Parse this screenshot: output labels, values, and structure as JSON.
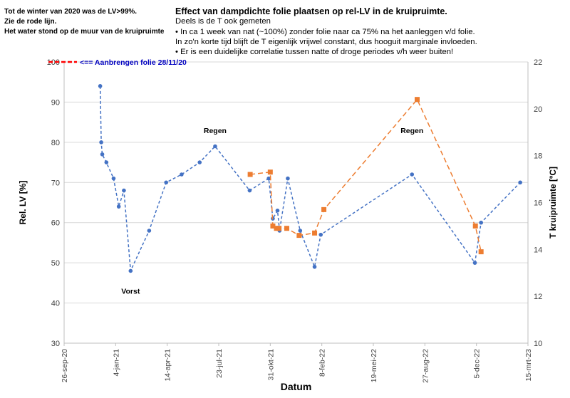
{
  "notes": {
    "line1": "Tot de winter  van 2020 was de LV>99%.",
    "line2": "Zie de rode lijn.",
    "line3": "Het water stond op de muur van de kruipruimte"
  },
  "header": {
    "title": "Effect van dampdichte  folie plaatsen op rel-LV in de kruipruimte.",
    "sub1": "Deels is de T ook gemeten",
    "sub2": "• In ca 1 week van nat (~100%) zonder folie naar ca 75% na het aanleggen v/d folie.",
    "sub3": "   In zo'n korte tijd blijft de T eigenlijk vrijwel constant, dus hooguit marginale invloeden.",
    "sub4": "• Er is een duidelijke correlatie tussen natte of droge periodes v/h weer buiten!"
  },
  "chart_data": {
    "type": "line",
    "xlabel": "Datum",
    "ylabel": "Rel. LV [%]",
    "y2label": "T kruipruimte [ºC]",
    "ylim": [
      30,
      100
    ],
    "y2lim": [
      10,
      22
    ],
    "yticks": [
      30,
      40,
      50,
      60,
      70,
      80,
      90,
      100
    ],
    "y2ticks": [
      10,
      12,
      14,
      16,
      18,
      20,
      22
    ],
    "xlim": [
      "2020-09-26",
      "2023-03-15"
    ],
    "xticks": [
      {
        "date": "2020-09-26",
        "label": "26-sep-20"
      },
      {
        "date": "2021-01-04",
        "label": "4-jan-21"
      },
      {
        "date": "2021-04-14",
        "label": "14-apr-21"
      },
      {
        "date": "2021-07-23",
        "label": "23-jul-21"
      },
      {
        "date": "2021-10-31",
        "label": "31-okt-21"
      },
      {
        "date": "2022-02-08",
        "label": "8-feb-22"
      },
      {
        "date": "2022-05-19",
        "label": "19-mei-22"
      },
      {
        "date": "2022-08-27",
        "label": "27-aug-22"
      },
      {
        "date": "2022-12-05",
        "label": "5-dec-22"
      },
      {
        "date": "2023-03-15",
        "label": "15-mrt-23"
      }
    ],
    "grid": "horizontal",
    "series": [
      {
        "name": "",
        "axis": "left",
        "color": "#4472c4",
        "style": "dashed",
        "marker": "circle",
        "points": [
          [
            "2020-12-05",
            94
          ],
          [
            "2020-12-07",
            80
          ],
          [
            "2020-12-09",
            77
          ],
          [
            "2020-12-17",
            75
          ],
          [
            "2020-12-31",
            71
          ],
          [
            "2021-01-10",
            64
          ],
          [
            "2021-01-20",
            68
          ],
          [
            "2021-02-02",
            48
          ],
          [
            "2021-03-10",
            58
          ],
          [
            "2021-04-12",
            70
          ],
          [
            "2021-05-12",
            72
          ],
          [
            "2021-06-16",
            75
          ],
          [
            "2021-07-16",
            79
          ],
          [
            "2021-09-21",
            68
          ],
          [
            "2021-10-28",
            71
          ],
          [
            "2021-11-05",
            61
          ],
          [
            "2021-11-14",
            63
          ],
          [
            "2021-11-18",
            58
          ],
          [
            "2021-12-04",
            71
          ],
          [
            "2021-12-28",
            58
          ],
          [
            "2022-01-25",
            49
          ],
          [
            "2022-02-06",
            57
          ],
          [
            "2022-08-02",
            72
          ],
          [
            "2022-12-02",
            50
          ],
          [
            "2022-12-14",
            60
          ],
          [
            "2023-02-28",
            70
          ]
        ]
      },
      {
        "name": "",
        "axis": "right",
        "color": "#ed7d31",
        "style": "dashed",
        "marker": "square",
        "points": [
          [
            "2021-09-22",
            17.2
          ],
          [
            "2021-10-31",
            17.3
          ],
          [
            "2021-11-05",
            15.0
          ],
          [
            "2021-11-12",
            14.9
          ],
          [
            "2021-11-17",
            14.9
          ],
          [
            "2021-12-02",
            14.9
          ],
          [
            "2021-12-26",
            14.6
          ],
          [
            "2022-01-25",
            14.7
          ],
          [
            "2022-02-12",
            15.7
          ],
          [
            "2022-08-12",
            20.4
          ],
          [
            "2022-12-03",
            15.0
          ],
          [
            "2022-12-14",
            13.9
          ]
        ]
      }
    ],
    "reference_line": {
      "label": "<== Aanbrengen folie 28/11/20",
      "y": 100,
      "color": "#ff0000"
    },
    "annotations": [
      {
        "text": "Regen",
        "date": "2021-07-16",
        "y": 83
      },
      {
        "text": "Regen",
        "date": "2022-08-02",
        "y": 83
      },
      {
        "text": "Vorst",
        "date": "2021-02-02",
        "y": 43
      }
    ]
  }
}
